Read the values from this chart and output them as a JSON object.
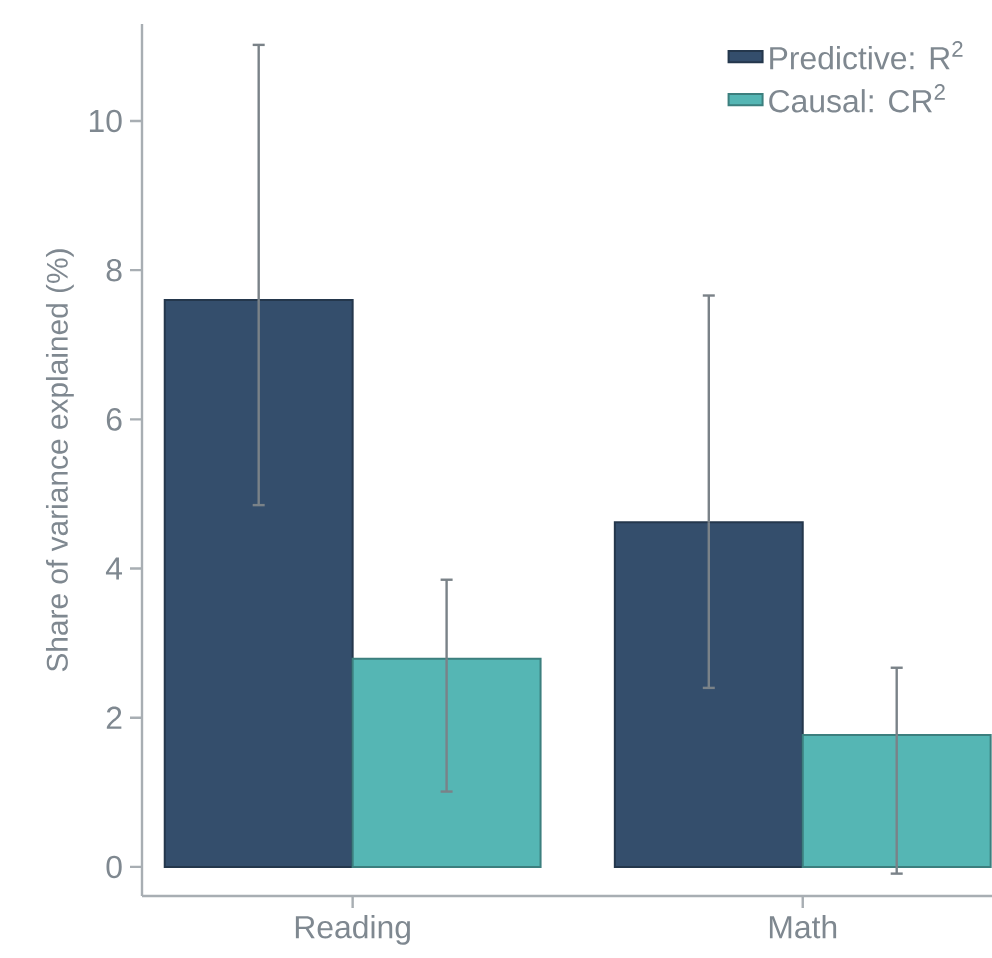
{
  "chart_data": {
    "type": "bar",
    "ylabel": "Share of variance explained (%)",
    "categories": [
      "Reading",
      "Math"
    ],
    "series": [
      {
        "name": "Predictive: R$^{2}$",
        "color": "#344e6c",
        "values": [
          7.6,
          4.62
        ],
        "errors": [
          [
            4.85,
            11.02
          ],
          [
            2.4,
            7.66
          ]
        ]
      },
      {
        "name": "Causal: CR$^{2}$",
        "color": "#55b6b4",
        "values": [
          2.79,
          1.77
        ],
        "errors": [
          [
            1.01,
            3.85
          ],
          [
            -0.09,
            2.67
          ]
        ]
      }
    ],
    "ylim": [
      -0.39,
      11.3
    ],
    "yticks": [
      0,
      2,
      4,
      6,
      8,
      10
    ],
    "grid": false,
    "legend": "top right"
  }
}
